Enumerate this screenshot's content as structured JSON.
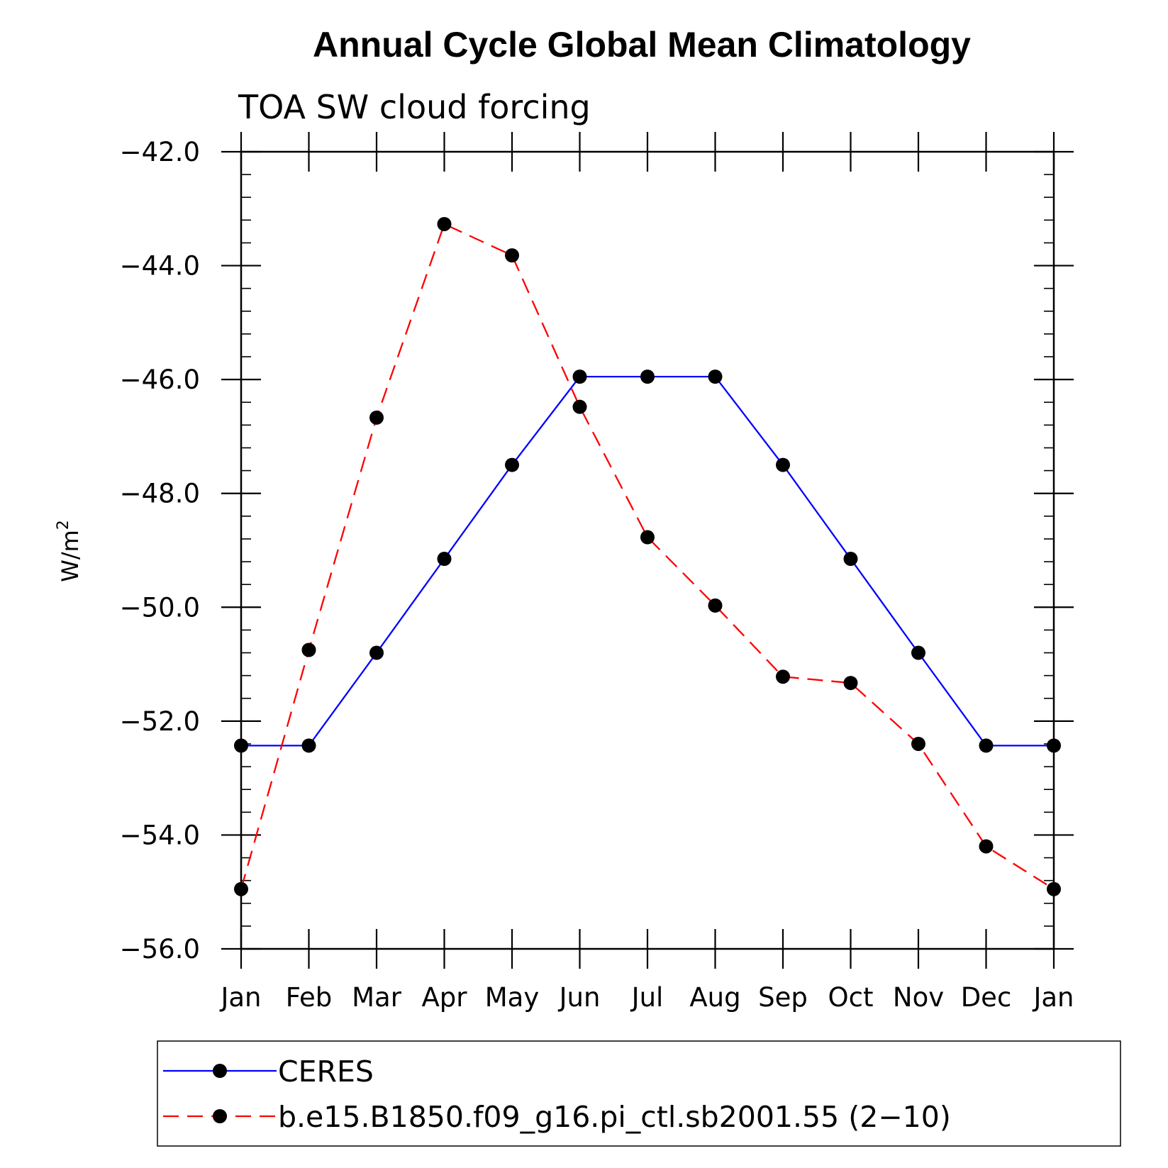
{
  "chart_data": {
    "type": "line",
    "title": "Annual Cycle Global Mean Climatology",
    "subtitle": "TOA SW cloud forcing",
    "ylabel": "W/m",
    "ylabel_sup": "2",
    "xlabel": "",
    "categories": [
      "Jan",
      "Feb",
      "Mar",
      "Apr",
      "May",
      "Jun",
      "Jul",
      "Aug",
      "Sep",
      "Oct",
      "Nov",
      "Dec",
      "Jan"
    ],
    "ylim": [
      -56.0,
      -42.0
    ],
    "yticks": [
      -42.0,
      -44.0,
      -46.0,
      -48.0,
      -50.0,
      -52.0,
      -54.0,
      -56.0
    ],
    "ytick_labels": [
      "−42.0",
      "−44.0",
      "−46.0",
      "−48.0",
      "−50.0",
      "−52.0",
      "−54.0",
      "−56.0"
    ],
    "grid": false,
    "legend_position": "bottom",
    "series": [
      {
        "name": "CERES",
        "color": "#0000ff",
        "dash": "solid",
        "marker": "filled-circle",
        "values": [
          -52.43,
          -52.43,
          -50.8,
          -49.15,
          -47.5,
          -45.95,
          -45.95,
          -45.95,
          -47.5,
          -49.15,
          -50.8,
          -52.43,
          -52.43
        ]
      },
      {
        "name": "b.e15.B1850.f09_g16.pi_ctl.sb2001.55 (2−10)",
        "color": "#ff0000",
        "dash": "dashed",
        "marker": "filled-circle",
        "values": [
          -54.95,
          -50.75,
          -46.67,
          -43.27,
          -43.82,
          -46.48,
          -48.77,
          -49.97,
          -51.22,
          -51.33,
          -52.4,
          -54.2,
          -54.95
        ]
      }
    ]
  }
}
